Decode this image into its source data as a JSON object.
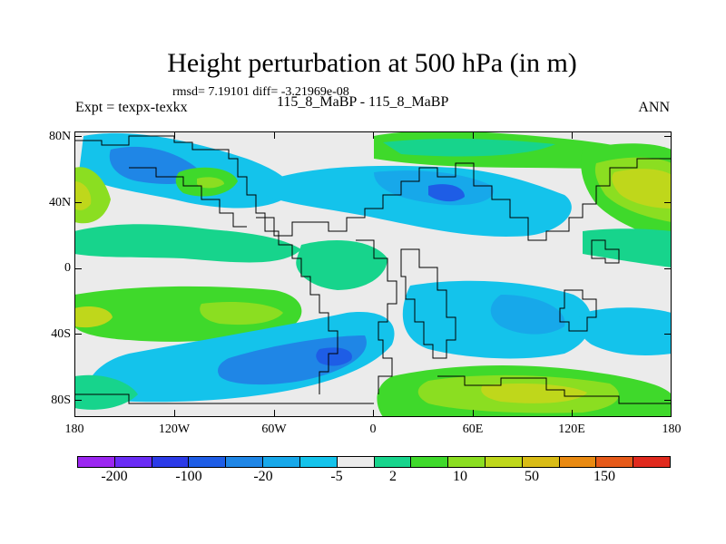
{
  "title": "Height perturbation at 500 hPa (in m)",
  "stats": "rmsd= 7.19101 diff= -3.21969e-08",
  "experiment": "Expt = texpx-texkx",
  "subtitle": "115_8_MaBP - 115_8_MaBP",
  "season": "ANN",
  "map": {
    "lat_ticks": [
      "80N",
      "40N",
      "0",
      "40S",
      "80S"
    ],
    "lon_ticks": [
      "180",
      "120W",
      "60W",
      "0",
      "60E",
      "120E",
      "180"
    ],
    "background_color": "#ebebeb"
  },
  "colorbar": {
    "colors": [
      "#9b26f0",
      "#6a2cf5",
      "#2c3be8",
      "#1e5de6",
      "#1f86e6",
      "#17a8ea",
      "#14c3eb",
      "#ebebeb",
      "#17d48c",
      "#3fd92b",
      "#8bde21",
      "#bfd71b",
      "#d9bc16",
      "#e98a12",
      "#e65a1a",
      "#e02a1e"
    ],
    "labels": [
      "-200",
      "-100",
      "-20",
      "-5",
      "2",
      "10",
      "50",
      "150"
    ]
  }
}
